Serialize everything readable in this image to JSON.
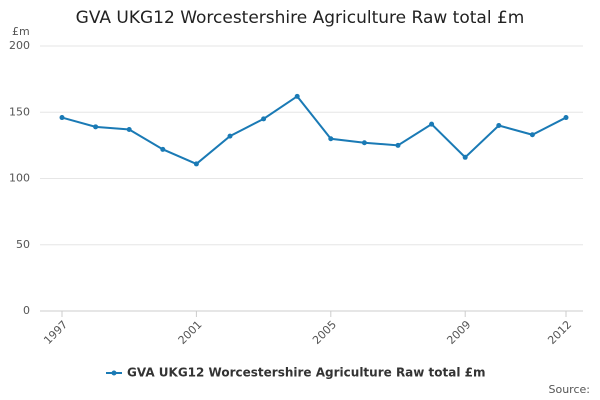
{
  "chart_data": {
    "type": "line",
    "title": "GVA UKG12 Worcestershire Agriculture Raw total £m",
    "y_label": "£m",
    "source": "Source:",
    "x": [
      1997,
      1998,
      1999,
      2000,
      2001,
      2002,
      2003,
      2004,
      2005,
      2006,
      2007,
      2008,
      2009,
      2010,
      2011,
      2012
    ],
    "series": [
      {
        "name": "GVA UKG12 Worcestershire Agriculture Raw total £m",
        "color": "#1a7ab5",
        "values": [
          146,
          139,
          137,
          122,
          111,
          132,
          145,
          162,
          130,
          127,
          125,
          141,
          116,
          140,
          133,
          146
        ]
      }
    ],
    "xlim": [
      1997,
      2012
    ],
    "xticks": [
      1997,
      2001,
      2005,
      2009,
      2012
    ],
    "ylim": [
      0,
      200
    ],
    "yticks": [
      0,
      50,
      100,
      150,
      200
    ],
    "grid": true
  }
}
